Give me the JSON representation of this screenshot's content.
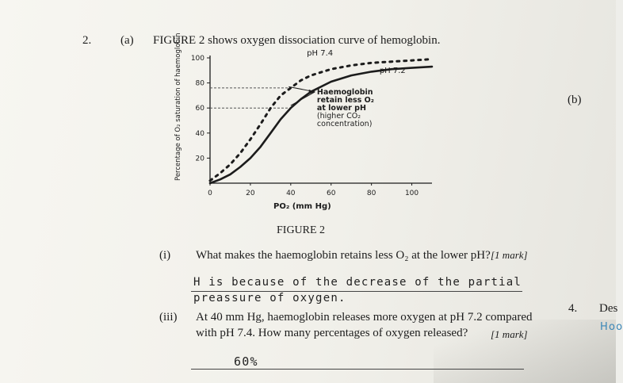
{
  "question": {
    "number": "2.",
    "part_a": "(a)",
    "stem": "FIGURE 2 shows oxygen dissociation curve of hemoglobin.",
    "part_b": "(b)",
    "figure_caption": "FIGURE 2"
  },
  "chart_data": {
    "type": "line",
    "ylabel": "Percentage of O₂ saturation of haemoglobin",
    "xlabel": "PO₂ (mm Hg)",
    "x_ticks": [
      "0",
      "20",
      "40",
      "60",
      "80",
      "100"
    ],
    "y_ticks": [
      "20",
      "40",
      "60",
      "80",
      "100"
    ],
    "xlim": [
      0,
      110
    ],
    "ylim": [
      0,
      100
    ],
    "series": [
      {
        "name": "pH 7.4",
        "style": "dotted",
        "x": [
          0,
          5,
          10,
          15,
          20,
          25,
          30,
          35,
          40,
          45,
          50,
          60,
          70,
          80,
          90,
          100,
          110
        ],
        "y": [
          2,
          8,
          15,
          24,
          35,
          47,
          60,
          70,
          76,
          82,
          86,
          91,
          94,
          96,
          97,
          98,
          99
        ]
      },
      {
        "name": "pH 7.2",
        "style": "solid",
        "x": [
          0,
          5,
          10,
          15,
          20,
          25,
          30,
          35,
          40,
          45,
          50,
          60,
          70,
          80,
          90,
          100,
          110
        ],
        "y": [
          0,
          3,
          7,
          13,
          20,
          29,
          40,
          51,
          60,
          67,
          73,
          81,
          86,
          89,
          91,
          92,
          93
        ]
      }
    ],
    "annotations": {
      "label_74": "pH 7.4",
      "label_72": "pH 7.2",
      "note_lines": [
        "Haemoglobin",
        "retain less O₂",
        "at lower pH",
        "(higher CO₂",
        "concentration)"
      ],
      "ref_lines_y": [
        60,
        76
      ]
    }
  },
  "q_i": {
    "label": "(i)",
    "text": "What makes the haemoglobin retains less O₂ at the lower pH?",
    "marks": "[1 mark]",
    "answer_line1": "H is because of the decrease of the partial",
    "answer_line2": "preassure of oxygen."
  },
  "q_iii": {
    "label": "(iii)",
    "line1": "At 40 mm Hg, haemoglobin releases more oxygen at pH 7.2 compared",
    "line2": "with pH 7.4. How many percentages of oxygen released?",
    "marks": "[1 mark]",
    "answer": "60%"
  },
  "side": {
    "q4_number": "4.",
    "q4_text": "Des",
    "blue_note": "Hoo"
  }
}
